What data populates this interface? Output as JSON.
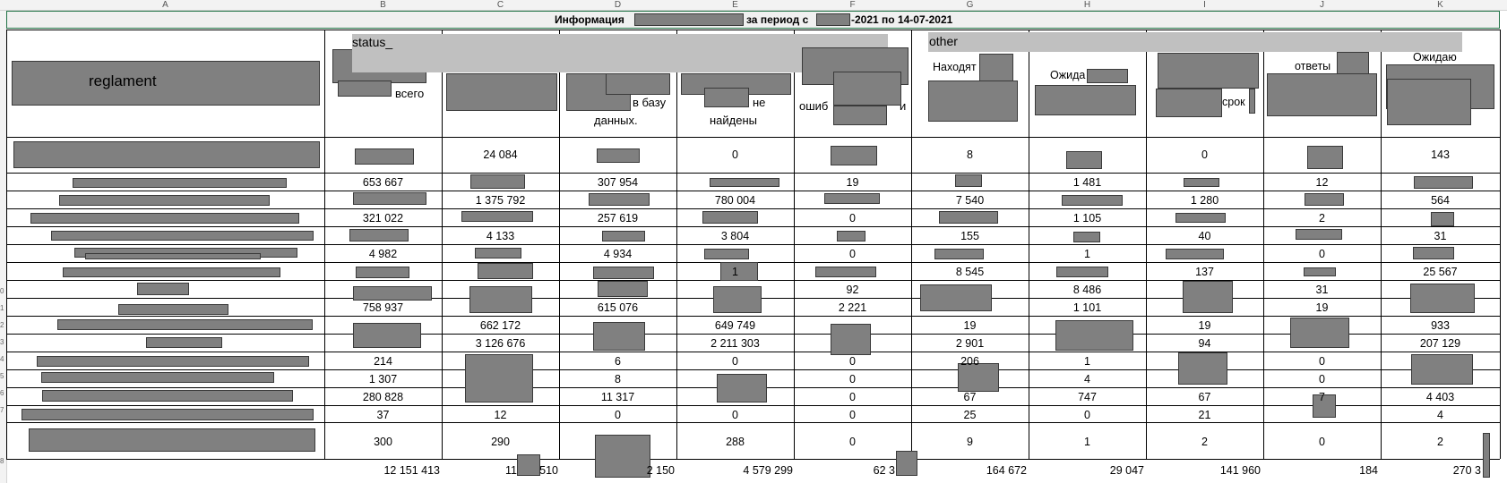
{
  "column_headers": [
    "A",
    "B",
    "C",
    "D",
    "E",
    "F",
    "G",
    "H",
    "I",
    "J",
    "K"
  ],
  "row_headers": [
    "0",
    "1",
    "2",
    "3",
    "4",
    "5",
    "6",
    "7",
    "8"
  ],
  "title": {
    "part1": "Информация",
    "part2": "за период с",
    "part3": "-2021 по 14-07-2021"
  },
  "header": {
    "reglament": "reglament",
    "status": "status_",
    "other": "other",
    "b": "всего",
    "d1": "в базу",
    "d2": "данных.",
    "e1": "не",
    "e2": "найдены",
    "f": "ошиб",
    "f2": "и",
    "g": "Находят",
    "h": "Ожида",
    "i": "срок",
    "j": "ответы",
    "k": "Ожидаю"
  },
  "rows": [
    {
      "B": "",
      "C": "24 084",
      "D": "",
      "E": "0",
      "F": "",
      "G": "8",
      "H": "",
      "I": "0",
      "J": "",
      "K": "143"
    },
    {
      "B": "653 667",
      "C": "",
      "D": "307 954",
      "E": "",
      "F": "19",
      "G": "",
      "H": "1 481",
      "I": "",
      "J": "12",
      "K": ""
    },
    {
      "B": "",
      "C": "1 375 792",
      "D": "",
      "E": "780 004",
      "F": "",
      "G": "7 540",
      "H": "",
      "I": "1 280",
      "J": "",
      "K": "564"
    },
    {
      "B": "321 022",
      "C": "",
      "D": "257 619",
      "E": "",
      "F": "0",
      "G": "",
      "H": "1 105",
      "I": "",
      "J": "2",
      "K": ""
    },
    {
      "B": "",
      "C": "4 133",
      "D": "",
      "E": "3 804",
      "F": "",
      "G": "155",
      "H": "",
      "I": "40",
      "J": "",
      "K": "31"
    },
    {
      "B": "4 982",
      "C": "",
      "D": "4 934",
      "E": "",
      "F": "0",
      "G": "",
      "H": "1",
      "I": "",
      "J": "0",
      "K": ""
    },
    {
      "B": "",
      "C": "",
      "D": "",
      "E": "1",
      "F": "",
      "G": "8 545",
      "H": "",
      "I": "137",
      "J": "",
      "K": "25 567"
    },
    {
      "B": "",
      "C": "",
      "D": "",
      "E": "",
      "F": "92",
      "G": "",
      "H": "8 486",
      "I": "",
      "J": "31",
      "K": ""
    },
    {
      "B": "758 937",
      "C": "",
      "D": "615 076",
      "E": "",
      "F": "2 221",
      "G": "",
      "H": "1 101",
      "I": "",
      "J": "19",
      "K": ""
    },
    {
      "B": "",
      "C": "662 172",
      "D": "",
      "E": "649 749",
      "F": "",
      "G": "19",
      "H": "",
      "I": "19",
      "J": "",
      "K": "933"
    },
    {
      "B": "",
      "C": "3 126 676",
      "D": "",
      "E": "2 211 303",
      "F": "",
      "G": "2 901",
      "H": "",
      "I": "94",
      "J": "",
      "K": "207 129"
    },
    {
      "B": "214",
      "C": "",
      "D": "6",
      "E": "0",
      "F": "0",
      "G": "206",
      "H": "1",
      "I": "",
      "J": "0",
      "K": ""
    },
    {
      "B": "1 307",
      "C": "",
      "D": "8",
      "E": "",
      "F": "0",
      "G": "",
      "H": "4",
      "I": "",
      "J": "0",
      "K": ""
    },
    {
      "B": "280 828",
      "C": "",
      "D": "11 317",
      "E": "",
      "F": "0",
      "G": "67",
      "H": "747",
      "I": "67",
      "J": "7",
      "K": "4 403"
    },
    {
      "B": "37",
      "C": "12",
      "D": "0",
      "E": "0",
      "F": "0",
      "G": "25",
      "H": "0",
      "I": "21",
      "J": "",
      "K": "4"
    },
    {
      "B": "300",
      "C": "290",
      "D": "",
      "E": "288",
      "F": "0",
      "G": "9",
      "H": "1",
      "I": "2",
      "J": "0",
      "K": "2"
    }
  ],
  "totals": {
    "B": "12 151 413",
    "C": "11",
    "C2": "510",
    "D": "2 150",
    "E": "4 579 299",
    "F": "62 3",
    "G": "164 672",
    "H": "29 047",
    "I": "141 960",
    "J": "184",
    "K": "270 3"
  }
}
